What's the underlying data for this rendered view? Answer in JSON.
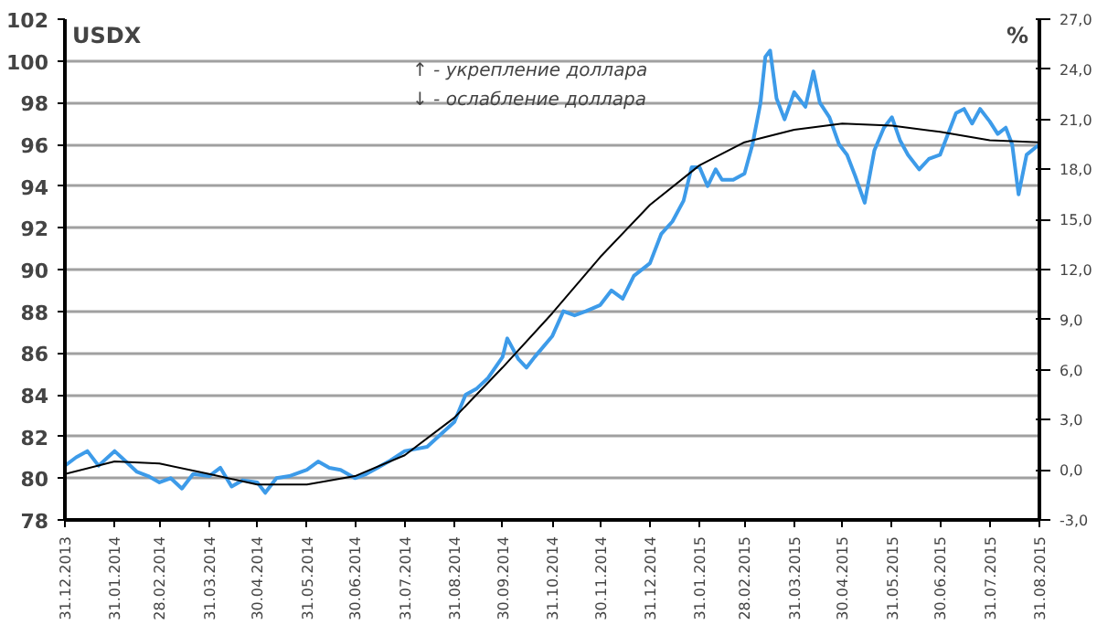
{
  "chart_data": {
    "type": "line",
    "ylabel": "USDX",
    "y2label": "%",
    "annotations": [
      "↑ - укрепление доллара",
      "↓ - ослабление доллара"
    ],
    "series": [
      {
        "color": "#3d9be9",
        "x": [
          "2013-12-31",
          "2014-01-07",
          "2014-01-14",
          "2014-01-21",
          "2014-01-31",
          "2014-02-07",
          "2014-02-14",
          "2014-02-21",
          "2014-02-28",
          "2014-03-07",
          "2014-03-14",
          "2014-03-21",
          "2014-03-31",
          "2014-04-07",
          "2014-04-14",
          "2014-04-21",
          "2014-04-30",
          "2014-05-05",
          "2014-05-12",
          "2014-05-20",
          "2014-05-31",
          "2014-06-07",
          "2014-06-14",
          "2014-06-21",
          "2014-06-30",
          "2014-07-07",
          "2014-07-14",
          "2014-07-21",
          "2014-07-31",
          "2014-08-07",
          "2014-08-14",
          "2014-08-21",
          "2014-08-31",
          "2014-09-07",
          "2014-09-14",
          "2014-09-21",
          "2014-09-30",
          "2014-10-03",
          "2014-10-10",
          "2014-10-15",
          "2014-10-20",
          "2014-10-31",
          "2014-11-07",
          "2014-11-14",
          "2014-11-21",
          "2014-11-30",
          "2014-12-07",
          "2014-12-14",
          "2014-12-21",
          "2014-12-31",
          "2015-01-07",
          "2015-01-14",
          "2015-01-21",
          "2015-01-26",
          "2015-01-31",
          "2015-02-05",
          "2015-02-10",
          "2015-02-14",
          "2015-02-21",
          "2015-02-28",
          "2015-03-05",
          "2015-03-10",
          "2015-03-13",
          "2015-03-16",
          "2015-03-20",
          "2015-03-25",
          "2015-03-31",
          "2015-04-07",
          "2015-04-12",
          "2015-04-16",
          "2015-04-22",
          "2015-04-28",
          "2015-05-03",
          "2015-05-08",
          "2015-05-14",
          "2015-05-20",
          "2015-05-26",
          "2015-05-31",
          "2015-06-05",
          "2015-06-10",
          "2015-06-17",
          "2015-06-23",
          "2015-06-30",
          "2015-07-05",
          "2015-07-10",
          "2015-07-15",
          "2015-07-20",
          "2015-07-25",
          "2015-07-31",
          "2015-08-05",
          "2015-08-10",
          "2015-08-14",
          "2015-08-18",
          "2015-08-23",
          "2015-08-31"
        ],
        "values": [
          80.6,
          81.0,
          81.3,
          80.6,
          81.3,
          80.8,
          80.3,
          80.1,
          79.8,
          80.0,
          79.5,
          80.2,
          80.1,
          80.5,
          79.6,
          79.9,
          79.8,
          79.3,
          80.0,
          80.1,
          80.4,
          80.8,
          80.5,
          80.4,
          80.0,
          80.2,
          80.5,
          80.8,
          81.3,
          81.4,
          81.5,
          82.0,
          82.7,
          84.0,
          84.3,
          84.8,
          85.8,
          86.7,
          85.7,
          85.3,
          85.8,
          86.8,
          88.0,
          87.8,
          88.0,
          88.3,
          89.0,
          88.6,
          89.7,
          90.3,
          91.7,
          92.3,
          93.3,
          94.9,
          94.9,
          94.0,
          94.8,
          94.3,
          94.3,
          94.6,
          96.0,
          98.0,
          100.2,
          100.5,
          98.2,
          97.2,
          98.5,
          97.8,
          99.5,
          98.0,
          97.3,
          96.0,
          95.5,
          94.5,
          93.2,
          95.7,
          96.8,
          97.3,
          96.2,
          95.5,
          94.8,
          95.3,
          95.5,
          96.5,
          97.5,
          97.7,
          97.0,
          97.7,
          97.1,
          96.5,
          96.8,
          96.0,
          93.6,
          95.5,
          96.0
        ]
      },
      {
        "color": "#000000",
        "x": [
          "2013-12-31",
          "2014-01-31",
          "2014-02-28",
          "2014-03-31",
          "2014-04-30",
          "2014-05-31",
          "2014-06-30",
          "2014-07-31",
          "2014-08-31",
          "2014-09-30",
          "2014-10-31",
          "2014-11-30",
          "2014-12-31",
          "2015-01-31",
          "2015-02-28",
          "2015-03-31",
          "2015-04-30",
          "2015-05-31",
          "2015-06-30",
          "2015-07-31",
          "2015-08-31"
        ],
        "values": [
          80.2,
          80.8,
          80.7,
          80.2,
          79.7,
          79.7,
          80.1,
          81.1,
          82.9,
          85.3,
          87.9,
          90.6,
          93.1,
          95.0,
          96.1,
          96.7,
          97.0,
          96.9,
          96.6,
          96.2,
          96.1
        ]
      }
    ],
    "xlim": [
      "2013-12-31",
      "2015-08-31"
    ],
    "xticks": [
      {
        "value": "2013-12-31",
        "label": "31.12.2013"
      },
      {
        "value": "2014-01-31",
        "label": "31.01.2014"
      },
      {
        "value": "2014-02-28",
        "label": "28.02.2014"
      },
      {
        "value": "2014-03-31",
        "label": "31.03.2014"
      },
      {
        "value": "2014-04-30",
        "label": "30.04.2014"
      },
      {
        "value": "2014-05-31",
        "label": "31.05.2014"
      },
      {
        "value": "2014-06-30",
        "label": "30.06.2014"
      },
      {
        "value": "2014-07-31",
        "label": "31.07.2014"
      },
      {
        "value": "2014-08-31",
        "label": "31.08.2014"
      },
      {
        "value": "2014-09-30",
        "label": "30.09.2014"
      },
      {
        "value": "2014-10-31",
        "label": "31.10.2014"
      },
      {
        "value": "2014-11-30",
        "label": "30.11.2014"
      },
      {
        "value": "2014-12-31",
        "label": "31.12.2014"
      },
      {
        "value": "2015-01-31",
        "label": "31.01.2015"
      },
      {
        "value": "2015-02-28",
        "label": "28.02.2015"
      },
      {
        "value": "2015-03-31",
        "label": "31.03.2015"
      },
      {
        "value": "2015-04-30",
        "label": "30.04.2015"
      },
      {
        "value": "2015-05-31",
        "label": "31.05.2015"
      },
      {
        "value": "2015-06-30",
        "label": "30.06.2015"
      },
      {
        "value": "2015-07-31",
        "label": "31.07.2015"
      },
      {
        "value": "2015-08-31",
        "label": "31.08.2015"
      }
    ],
    "ylim": [
      78,
      102
    ],
    "yticks": [
      78,
      80,
      82,
      84,
      86,
      88,
      90,
      92,
      94,
      96,
      98,
      100,
      102
    ],
    "y2lim": [
      -3,
      27
    ],
    "y2ticks": [
      {
        "value": -3,
        "label": "-3,0"
      },
      {
        "value": 0,
        "label": "0,0"
      },
      {
        "value": 3,
        "label": "3,0"
      },
      {
        "value": 6,
        "label": "6,0"
      },
      {
        "value": 9,
        "label": "9,0"
      },
      {
        "value": 12,
        "label": "12,0"
      },
      {
        "value": 15,
        "label": "15,0"
      },
      {
        "value": 18,
        "label": "18,0"
      },
      {
        "value": 21,
        "label": "21,0"
      },
      {
        "value": 24,
        "label": "24,0"
      },
      {
        "value": 27,
        "label": "27,0"
      }
    ],
    "grid": "y"
  }
}
